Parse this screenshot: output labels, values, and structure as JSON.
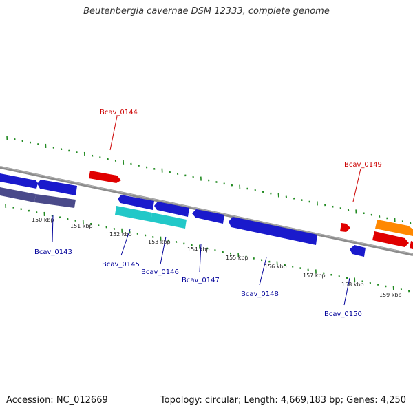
{
  "title": "Beutenbergia cavernae DSM 12333, complete genome",
  "footer": {
    "accession": "Accession: NC_012669",
    "summary": "Topology: circular; Length: 4,669,183 bp; Genes: 4,250"
  },
  "colors": {
    "forward_label": "#cc0000",
    "reverse_label": "#000099",
    "backbone": "#8c8c8c",
    "scale_ticks": "#228b22",
    "gene_blue": "#1a1acc",
    "gene_red": "#e00000",
    "gene_orange": "#ff8800",
    "gene_cyan": "#22c8c8",
    "gene_slate": "#4a4a8a"
  },
  "ticks": [
    "150 kbp",
    "151 kbp",
    "152 kbp",
    "153 kbp",
    "154 kbp",
    "155 kbp",
    "156 kbp",
    "157 kbp",
    "158 kbp",
    "159 kbp"
  ],
  "labels": {
    "bcav_0143": "Bcav_0143",
    "bcav_0144": "Bcav_0144",
    "bcav_0145": "Bcav_0145",
    "bcav_0146": "Bcav_0146",
    "bcav_0147": "Bcav_0147",
    "bcav_0148": "Bcav_0148",
    "bcav_0149": "Bcav_0149",
    "bcav_0150": "Bcav_0150"
  }
}
